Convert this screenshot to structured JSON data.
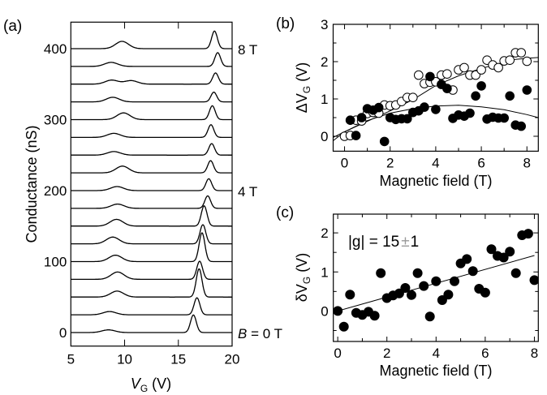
{
  "chart_data": [
    {
      "id": "a",
      "type": "line",
      "panel_label": "(a)",
      "title": "",
      "xlabel_main": "V",
      "xlabel_sub": "G",
      "xlabel_unit": " (V)",
      "ylabel": "Conductance (nS)",
      "xlim": [
        5,
        20
      ],
      "ylim": [
        -20,
        440
      ],
      "xticks": [
        5,
        10,
        15,
        20
      ],
      "xtick_labels": [
        "5",
        "10",
        "15",
        "20"
      ],
      "yticks": [
        0,
        100,
        200,
        300,
        400
      ],
      "ytick_labels": [
        "0",
        "100",
        "200",
        "300",
        "400"
      ],
      "offset_step_nS": 25,
      "right_labels": [
        {
          "offset": 400,
          "text": "8 T"
        },
        {
          "offset": 200,
          "text": "4 T"
        },
        {
          "offset": 0,
          "prefix": "B",
          "text": " = 0 T"
        }
      ],
      "series": [
        {
          "B_T": 0.0,
          "offset": 0,
          "broad_peaks": [
            {
              "v": 8.5,
              "h": 3.8
            }
          ],
          "sharp_peak": {
            "v": 16.4,
            "h": 24.8
          }
        },
        {
          "B_T": 0.5,
          "offset": 25,
          "broad_peaks": [
            {
              "v": 8.6,
              "h": 4.6
            }
          ],
          "sharp_peak": {
            "v": 16.73,
            "h": 24.0
          }
        },
        {
          "B_T": 1.0,
          "offset": 50,
          "broad_peaks": [
            {
              "v": 9.3,
              "h": 8.4
            }
          ],
          "sharp_peak": {
            "v": 16.93,
            "h": 39.8
          }
        },
        {
          "B_T": 1.5,
          "offset": 75,
          "broad_peaks": [
            {
              "v": 9.35,
              "h": 10.3
            }
          ],
          "sharp_peak": {
            "v": 16.98,
            "h": 25.5
          }
        },
        {
          "B_T": 2.0,
          "offset": 100,
          "broad_peaks": [
            {
              "v": 9.15,
              "h": 9.0
            }
          ],
          "sharp_peak": {
            "v": 17.2,
            "h": 40.6
          }
        },
        {
          "B_T": 2.5,
          "offset": 125,
          "broad_peaks": [
            {
              "v": 8.9,
              "h": 9.5
            }
          ],
          "sharp_peak": {
            "v": 17.28,
            "h": 27.0
          }
        },
        {
          "B_T": 3.0,
          "offset": 150,
          "broad_peaks": [
            {
              "v": 9.25,
              "h": 9.5
            }
          ],
          "sharp_peak": {
            "v": 17.4,
            "h": 28.6
          }
        },
        {
          "B_T": 3.5,
          "offset": 175,
          "broad_peaks": [
            {
              "v": 9.35,
              "h": 6.0
            }
          ],
          "sharp_peak": {
            "v": 17.73,
            "h": 17.6
          }
        },
        {
          "B_T": 4.0,
          "offset": 200,
          "broad_peaks": [
            {
              "v": 9.3,
              "h": 5.7
            }
          ],
          "sharp_peak": {
            "v": 17.83,
            "h": 16.7
          }
        },
        {
          "B_T": 4.5,
          "offset": 225,
          "broad_peaks": [
            {
              "v": 9.8,
              "h": 9.5
            }
          ],
          "sharp_peak": {
            "v": 18.0,
            "h": 17.2
          }
        },
        {
          "B_T": 5.0,
          "offset": 250,
          "broad_peaks": [
            {
              "v": 9.0,
              "h": 5.0
            }
          ],
          "sharp_peak": {
            "v": 18.1,
            "h": 16.2
          }
        },
        {
          "B_T": 5.5,
          "offset": 275,
          "broad_peaks": [
            {
              "v": 9.0,
              "h": 5.7
            }
          ],
          "sharp_peak": {
            "v": 18.03,
            "h": 17.8
          }
        },
        {
          "B_T": 6.0,
          "offset": 300,
          "broad_peaks": [
            {
              "v": 9.9,
              "h": 9.5
            }
          ],
          "sharp_peak": {
            "v": 18.16,
            "h": 19.5
          }
        },
        {
          "B_T": 6.5,
          "offset": 325,
          "broad_peaks": [
            {
              "v": 8.9,
              "h": 6.5
            }
          ],
          "sharp_peak": {
            "v": 18.3,
            "h": 13.7
          }
        },
        {
          "B_T": 7.0,
          "offset": 350,
          "broad_peaks": [
            {
              "v": 8.8,
              "h": 5.7
            },
            {
              "v": 10.6,
              "h": 5.0
            }
          ],
          "sharp_peak": {
            "v": 18.46,
            "h": 15.8
          }
        },
        {
          "B_T": 7.5,
          "offset": 375,
          "broad_peaks": [
            {
              "v": 8.75,
              "h": 5.7
            }
          ],
          "sharp_peak": {
            "v": 18.66,
            "h": 19.4
          }
        },
        {
          "B_T": 8.0,
          "offset": 400,
          "broad_peaks": [
            {
              "v": 9.76,
              "h": 10.3
            }
          ],
          "sharp_peak": {
            "v": 18.36,
            "h": 24.8
          }
        }
      ]
    },
    {
      "id": "b",
      "type": "scatter",
      "panel_label": "(b)",
      "title": "",
      "xlabel": "Magnetic field (T)",
      "ylabel_prefix": "ΔV",
      "ylabel_sub": "G",
      "ylabel_unit": " (V)",
      "xlim": [
        -0.5,
        8.5
      ],
      "ylim": [
        -0.4,
        3
      ],
      "xticks_major": [
        0,
        2,
        4,
        6,
        8
      ],
      "xtick_labels": [
        "0",
        "2",
        "4",
        "6",
        "8"
      ],
      "xticks_minor": [
        1,
        3,
        5,
        7
      ],
      "yticks_major": [
        0,
        1,
        2,
        3
      ],
      "ytick_labels": [
        "0",
        "1",
        "2",
        "3"
      ],
      "yticks_minor": [
        0.5,
        1.5,
        2.5
      ],
      "series": [
        {
          "name": "open",
          "marker": "open-circle",
          "x": [
            0,
            0.25,
            0.5,
            0.75,
            1.0,
            1.25,
            1.5,
            1.75,
            2.0,
            2.25,
            2.5,
            2.75,
            3.0,
            3.25,
            3.5,
            3.75,
            4.0,
            4.25,
            4.5,
            4.75,
            5.0,
            5.25,
            5.5,
            5.75,
            6.0,
            6.25,
            6.5,
            6.75,
            7.0,
            7.25,
            7.5,
            7.75,
            8.0
          ],
          "y": [
            0.0,
            0.02,
            0.43,
            0.41,
            0.61,
            0.64,
            0.62,
            0.84,
            0.82,
            0.84,
            0.93,
            1.04,
            1.04,
            1.64,
            1.41,
            1.45,
            1.46,
            1.64,
            1.67,
            1.24,
            1.78,
            1.84,
            1.64,
            1.64,
            1.78,
            2.04,
            1.91,
            1.84,
            2.02,
            2.04,
            2.24,
            2.24,
            2.01
          ]
        },
        {
          "name": "filled",
          "marker": "filled-circle",
          "x": [
            0.25,
            0.5,
            0.75,
            1.0,
            1.25,
            1.5,
            1.75,
            2.0,
            2.25,
            2.5,
            2.75,
            3.0,
            3.25,
            3.5,
            3.75,
            4.0,
            4.25,
            4.5,
            4.75,
            5.0,
            5.25,
            5.5,
            5.75,
            6.0,
            6.25,
            6.5,
            6.75,
            7.0,
            7.25,
            7.5,
            7.75,
            8.0
          ],
          "y": [
            0.43,
            0.02,
            0.5,
            0.74,
            0.7,
            0.77,
            -0.14,
            0.5,
            0.45,
            0.47,
            0.47,
            0.64,
            0.68,
            0.78,
            1.6,
            0.72,
            1.39,
            1.28,
            0.48,
            0.57,
            0.54,
            0.62,
            1.08,
            1.35,
            0.46,
            0.51,
            0.49,
            0.49,
            1.08,
            0.3,
            0.27,
            1.24
          ]
        },
        {
          "name": "fit-upper",
          "marker": "line",
          "x": [
            -0.5,
            0,
            1,
            2,
            3,
            4,
            5,
            6,
            7,
            7.5,
            8,
            8.5
          ],
          "y": [
            -0.03,
            0.12,
            0.4,
            0.68,
            0.98,
            1.36,
            1.62,
            1.82,
            1.98,
            2.06,
            2.09,
            2.11
          ]
        },
        {
          "name": "fit-lower",
          "marker": "line",
          "x": [
            -0.5,
            0,
            1,
            2,
            3,
            4,
            5,
            6,
            7,
            8,
            8.5
          ],
          "y": [
            -0.12,
            0.12,
            0.42,
            0.62,
            0.74,
            0.81,
            0.83,
            0.79,
            0.71,
            0.58,
            0.5
          ]
        }
      ]
    },
    {
      "id": "c",
      "type": "scatter",
      "panel_label": "(c)",
      "title": "",
      "xlabel": "Magnetic field (T)",
      "ylabel_prefix": "δV",
      "ylabel_sub": "G",
      "ylabel_unit": " (V)",
      "annotation_left": "|g| = 15",
      "annotation_pm": "±",
      "annotation_right": "1",
      "xlim": [
        -0.18,
        8.16
      ],
      "ylim": [
        -0.78,
        2.48
      ],
      "xticks_major": [
        0,
        2,
        4,
        6,
        8
      ],
      "xtick_labels": [
        "0",
        "2",
        "4",
        "6",
        "8"
      ],
      "xticks_minor": [
        1,
        3,
        5,
        7
      ],
      "yticks_major": [
        0,
        1,
        2
      ],
      "ytick_labels": [
        "0",
        "1",
        "2"
      ],
      "yticks_minor": [
        -0.5,
        0.5,
        1.5
      ],
      "series": [
        {
          "name": "data",
          "marker": "filled-circle",
          "x": [
            0,
            0.25,
            0.5,
            0.75,
            1.0,
            1.25,
            1.5,
            1.75,
            2.0,
            2.25,
            2.5,
            2.75,
            3.0,
            3.25,
            3.5,
            3.75,
            4.0,
            4.25,
            4.5,
            4.75,
            5.0,
            5.25,
            5.5,
            5.75,
            6.0,
            6.25,
            6.5,
            6.75,
            7.0,
            7.25,
            7.5,
            7.75,
            8.0
          ],
          "y": [
            0.0,
            -0.4,
            0.42,
            -0.05,
            -0.1,
            -0.02,
            -0.12,
            0.97,
            0.33,
            0.4,
            0.45,
            0.59,
            0.41,
            0.97,
            0.64,
            -0.14,
            0.76,
            0.28,
            0.42,
            0.76,
            1.22,
            1.33,
            1.02,
            0.57,
            0.47,
            1.58,
            1.41,
            1.37,
            1.52,
            0.97,
            1.94,
            1.98,
            0.79
          ]
        },
        {
          "name": "linear-fit",
          "marker": "line",
          "x": [
            0,
            8.0
          ],
          "y": [
            0.0,
            1.42
          ]
        }
      ]
    }
  ]
}
